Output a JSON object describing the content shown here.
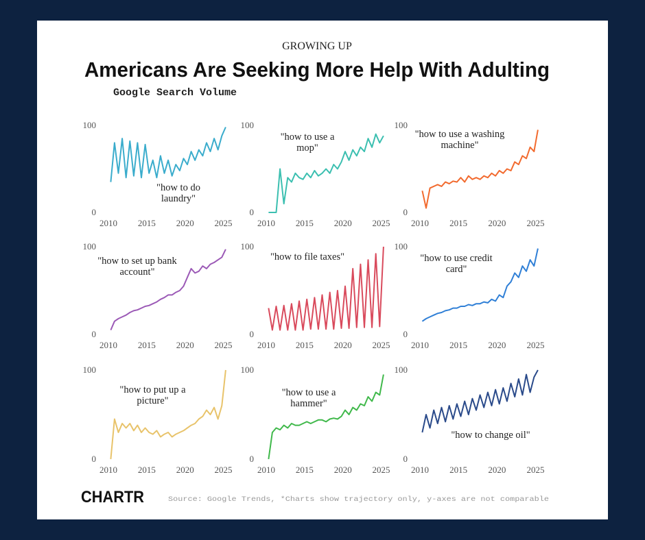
{
  "header": {
    "kicker": "GROWING UP",
    "title": "Americans Are Seeking More Help With Adulting",
    "subtitle": "Google Search Volume"
  },
  "footer": {
    "logo": "CHARTR",
    "source": "Source: Google Trends, *Charts show trajectory only, y-axes are not comparable"
  },
  "chart_data": [
    {
      "type": "line",
      "xlim": [
        2010,
        2025.4
      ],
      "ylim": [
        0,
        100
      ],
      "xticks": [
        2010,
        2015,
        2020,
        2025
      ],
      "yticks": [
        0,
        100
      ],
      "x": [
        2010.3,
        2010.8,
        2011.3,
        2011.8,
        2012.3,
        2012.8,
        2013.3,
        2013.8,
        2014.3,
        2014.8,
        2015.3,
        2015.8,
        2016.3,
        2016.8,
        2017.3,
        2017.8,
        2018.3,
        2018.8,
        2019.3,
        2019.8,
        2020.3,
        2020.8,
        2021.3,
        2021.8,
        2022.3,
        2022.8,
        2023.3,
        2023.8,
        2024.3,
        2024.8,
        2025.3
      ],
      "series": [
        {
          "name": "\"how to do laundry\"",
          "color": "#3aaccc",
          "values": [
            35,
            80,
            45,
            85,
            40,
            82,
            42,
            80,
            40,
            78,
            45,
            60,
            40,
            65,
            45,
            60,
            42,
            55,
            48,
            62,
            55,
            70,
            60,
            72,
            65,
            80,
            70,
            85,
            72,
            88,
            98
          ]
        }
      ]
    },
    {
      "type": "line",
      "xlim": [
        2010,
        2025.4
      ],
      "ylim": [
        0,
        100
      ],
      "xticks": [
        2010,
        2015,
        2020,
        2025
      ],
      "yticks": [
        0,
        100
      ],
      "x": [
        2010.3,
        2010.8,
        2011.3,
        2011.8,
        2012.3,
        2012.8,
        2013.3,
        2013.8,
        2014.3,
        2014.8,
        2015.3,
        2015.8,
        2016.3,
        2016.8,
        2017.3,
        2017.8,
        2018.3,
        2018.8,
        2019.3,
        2019.8,
        2020.3,
        2020.8,
        2021.3,
        2021.8,
        2022.3,
        2022.8,
        2023.3,
        2023.8,
        2024.3,
        2024.8,
        2025.3
      ],
      "series": [
        {
          "name": "\"how to use a mop\"",
          "color": "#3bbfb0",
          "values": [
            0,
            0,
            0,
            50,
            10,
            40,
            35,
            45,
            40,
            38,
            45,
            40,
            48,
            42,
            45,
            50,
            45,
            55,
            50,
            58,
            70,
            60,
            72,
            65,
            75,
            70,
            85,
            75,
            90,
            80,
            88
          ]
        }
      ]
    },
    {
      "type": "line",
      "xlim": [
        2010,
        2025.4
      ],
      "ylim": [
        0,
        100
      ],
      "xticks": [
        2010,
        2015,
        2020,
        2025
      ],
      "yticks": [
        0,
        100
      ],
      "x": [
        2010.3,
        2010.8,
        2011.3,
        2011.8,
        2012.3,
        2012.8,
        2013.3,
        2013.8,
        2014.3,
        2014.8,
        2015.3,
        2015.8,
        2016.3,
        2016.8,
        2017.3,
        2017.8,
        2018.3,
        2018.8,
        2019.3,
        2019.8,
        2020.3,
        2020.8,
        2021.3,
        2021.8,
        2022.3,
        2022.8,
        2023.3,
        2023.8,
        2024.3,
        2024.8,
        2025.3
      ],
      "series": [
        {
          "name": "\"how to use a washing machine\"",
          "color": "#f26a2e",
          "values": [
            25,
            5,
            28,
            30,
            32,
            30,
            35,
            33,
            36,
            35,
            40,
            35,
            42,
            38,
            40,
            38,
            42,
            40,
            45,
            42,
            48,
            45,
            50,
            48,
            58,
            55,
            65,
            62,
            75,
            70,
            95
          ]
        }
      ]
    },
    {
      "type": "line",
      "xlim": [
        2010,
        2025.4
      ],
      "ylim": [
        0,
        100
      ],
      "xticks": [
        2010,
        2015,
        2020,
        2025
      ],
      "yticks": [
        0,
        100
      ],
      "x": [
        2010.3,
        2010.8,
        2011.3,
        2011.8,
        2012.3,
        2012.8,
        2013.3,
        2013.8,
        2014.3,
        2014.8,
        2015.3,
        2015.8,
        2016.3,
        2016.8,
        2017.3,
        2017.8,
        2018.3,
        2018.8,
        2019.3,
        2019.8,
        2020.3,
        2020.8,
        2021.3,
        2021.8,
        2022.3,
        2022.8,
        2023.3,
        2023.8,
        2024.3,
        2024.8,
        2025.3
      ],
      "series": [
        {
          "name": "\"how to set up bank account\"",
          "color": "#9b59b6",
          "values": [
            5,
            15,
            18,
            20,
            22,
            25,
            27,
            28,
            30,
            32,
            33,
            35,
            37,
            40,
            42,
            45,
            45,
            48,
            50,
            55,
            65,
            75,
            70,
            72,
            78,
            75,
            80,
            82,
            85,
            88,
            97
          ]
        }
      ]
    },
    {
      "type": "line",
      "xlim": [
        2010,
        2025.4
      ],
      "ylim": [
        0,
        100
      ],
      "xticks": [
        2010,
        2015,
        2020,
        2025
      ],
      "yticks": [
        0,
        100
      ],
      "x": [
        2010.3,
        2010.8,
        2011.3,
        2011.8,
        2012.3,
        2012.8,
        2013.3,
        2013.8,
        2014.3,
        2014.8,
        2015.3,
        2015.8,
        2016.3,
        2016.8,
        2017.3,
        2017.8,
        2018.3,
        2018.8,
        2019.3,
        2019.8,
        2020.3,
        2020.8,
        2021.3,
        2021.8,
        2022.3,
        2022.8,
        2023.3,
        2023.8,
        2024.3,
        2024.8,
        2025.3
      ],
      "series": [
        {
          "name": "\"how to file taxes\"",
          "color": "#d94a5c",
          "values": [
            30,
            5,
            32,
            5,
            33,
            5,
            35,
            5,
            38,
            5,
            40,
            6,
            42,
            6,
            45,
            6,
            48,
            6,
            50,
            7,
            55,
            7,
            75,
            8,
            80,
            8,
            85,
            8,
            92,
            9,
            100
          ]
        }
      ]
    },
    {
      "type": "line",
      "xlim": [
        2010,
        2025.4
      ],
      "ylim": [
        0,
        100
      ],
      "xticks": [
        2010,
        2015,
        2020,
        2025
      ],
      "yticks": [
        0,
        100
      ],
      "x": [
        2010.3,
        2010.8,
        2011.3,
        2011.8,
        2012.3,
        2012.8,
        2013.3,
        2013.8,
        2014.3,
        2014.8,
        2015.3,
        2015.8,
        2016.3,
        2016.8,
        2017.3,
        2017.8,
        2018.3,
        2018.8,
        2019.3,
        2019.8,
        2020.3,
        2020.8,
        2021.3,
        2021.8,
        2022.3,
        2022.8,
        2023.3,
        2023.8,
        2024.3,
        2024.8,
        2025.3
      ],
      "series": [
        {
          "name": "\"how to use credit card\"",
          "color": "#2f7fd6",
          "values": [
            15,
            18,
            20,
            22,
            24,
            25,
            27,
            28,
            30,
            30,
            32,
            32,
            34,
            33,
            35,
            35,
            37,
            36,
            40,
            38,
            45,
            42,
            55,
            60,
            70,
            65,
            78,
            72,
            85,
            78,
            98
          ]
        }
      ]
    },
    {
      "type": "line",
      "xlim": [
        2010,
        2025.4
      ],
      "ylim": [
        0,
        100
      ],
      "xticks": [
        2010,
        2015,
        2020,
        2025
      ],
      "yticks": [
        0,
        100
      ],
      "x": [
        2010.3,
        2010.8,
        2011.3,
        2011.8,
        2012.3,
        2012.8,
        2013.3,
        2013.8,
        2014.3,
        2014.8,
        2015.3,
        2015.8,
        2016.3,
        2016.8,
        2017.3,
        2017.8,
        2018.3,
        2018.8,
        2019.3,
        2019.8,
        2020.3,
        2020.8,
        2021.3,
        2021.8,
        2022.3,
        2022.8,
        2023.3,
        2023.8,
        2024.3,
        2024.8,
        2025.3
      ],
      "series": [
        {
          "name": "\"how to put up a picture\"",
          "color": "#e8c36a",
          "values": [
            0,
            45,
            30,
            40,
            35,
            40,
            32,
            38,
            30,
            35,
            30,
            28,
            32,
            25,
            28,
            30,
            25,
            28,
            30,
            32,
            35,
            38,
            40,
            45,
            48,
            55,
            50,
            58,
            45,
            60,
            100
          ]
        }
      ]
    },
    {
      "type": "line",
      "xlim": [
        2010,
        2025.4
      ],
      "ylim": [
        0,
        100
      ],
      "xticks": [
        2010,
        2015,
        2020,
        2025
      ],
      "yticks": [
        0,
        100
      ],
      "x": [
        2010.3,
        2010.8,
        2011.3,
        2011.8,
        2012.3,
        2012.8,
        2013.3,
        2013.8,
        2014.3,
        2014.8,
        2015.3,
        2015.8,
        2016.3,
        2016.8,
        2017.3,
        2017.8,
        2018.3,
        2018.8,
        2019.3,
        2019.8,
        2020.3,
        2020.8,
        2021.3,
        2021.8,
        2022.3,
        2022.8,
        2023.3,
        2023.8,
        2024.3,
        2024.8,
        2025.3
      ],
      "series": [
        {
          "name": "\"how to use a hammer\"",
          "color": "#3fb84a",
          "values": [
            0,
            30,
            35,
            33,
            38,
            35,
            40,
            38,
            38,
            40,
            42,
            40,
            42,
            44,
            44,
            42,
            45,
            46,
            45,
            48,
            55,
            50,
            58,
            55,
            62,
            60,
            70,
            65,
            75,
            72,
            95
          ]
        }
      ]
    },
    {
      "type": "line",
      "xlim": [
        2010,
        2025.4
      ],
      "ylim": [
        0,
        100
      ],
      "xticks": [
        2010,
        2015,
        2020,
        2025
      ],
      "yticks": [
        0,
        100
      ],
      "x": [
        2010.3,
        2010.8,
        2011.3,
        2011.8,
        2012.3,
        2012.8,
        2013.3,
        2013.8,
        2014.3,
        2014.8,
        2015.3,
        2015.8,
        2016.3,
        2016.8,
        2017.3,
        2017.8,
        2018.3,
        2018.8,
        2019.3,
        2019.8,
        2020.3,
        2020.8,
        2021.3,
        2021.8,
        2022.3,
        2022.8,
        2023.3,
        2023.8,
        2024.3,
        2024.8,
        2025.3
      ],
      "series": [
        {
          "name": "\"how to change oil\"",
          "color": "#2a4a8a",
          "values": [
            30,
            50,
            35,
            55,
            40,
            58,
            42,
            60,
            45,
            62,
            48,
            65,
            50,
            68,
            55,
            72,
            58,
            75,
            60,
            78,
            62,
            80,
            65,
            85,
            70,
            90,
            72,
            95,
            75,
            92,
            100
          ]
        }
      ]
    }
  ]
}
